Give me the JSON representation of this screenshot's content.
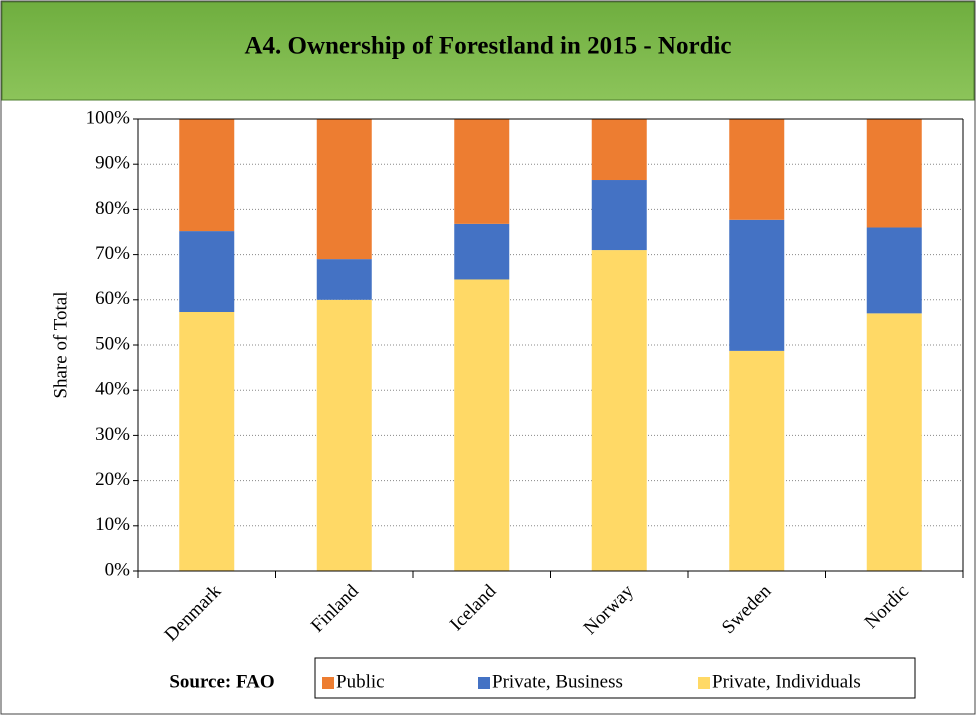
{
  "chart_data": {
    "type": "stacked_bar",
    "title": "A4. Ownership of Forestland in 2015 - Nordic",
    "y_label": "Share of Total",
    "source": "Source: FAO",
    "categories": [
      "Denmark",
      "Finland",
      "Iceland",
      "Norway",
      "Sweden",
      "Nordic"
    ],
    "series": [
      {
        "name": "Public",
        "color": "#ed7d31",
        "values": [
          24.8,
          31,
          23.2,
          13.5,
          22.3,
          24
        ]
      },
      {
        "name": "Private, Business",
        "color": "#4472c4",
        "values": [
          17.9,
          9,
          12.3,
          15.5,
          29,
          19
        ]
      },
      {
        "name": "Private, Individuals",
        "color": "#ffd966",
        "values": [
          57.3,
          60,
          64.5,
          71,
          48.7,
          57
        ]
      }
    ],
    "ylim": [
      0,
      100
    ],
    "yticks": [
      {
        "value": 0,
        "label": "0%"
      },
      {
        "value": 10,
        "label": "10%"
      },
      {
        "value": 20,
        "label": "20%"
      },
      {
        "value": 30,
        "label": "30%"
      },
      {
        "value": 40,
        "label": "40%"
      },
      {
        "value": 50,
        "label": "50%"
      },
      {
        "value": 60,
        "label": "60%"
      },
      {
        "value": 70,
        "label": "70%"
      },
      {
        "value": 80,
        "label": "80%"
      },
      {
        "value": 90,
        "label": "90%"
      },
      {
        "value": 100,
        "label": "100%"
      }
    ],
    "grid": true
  }
}
